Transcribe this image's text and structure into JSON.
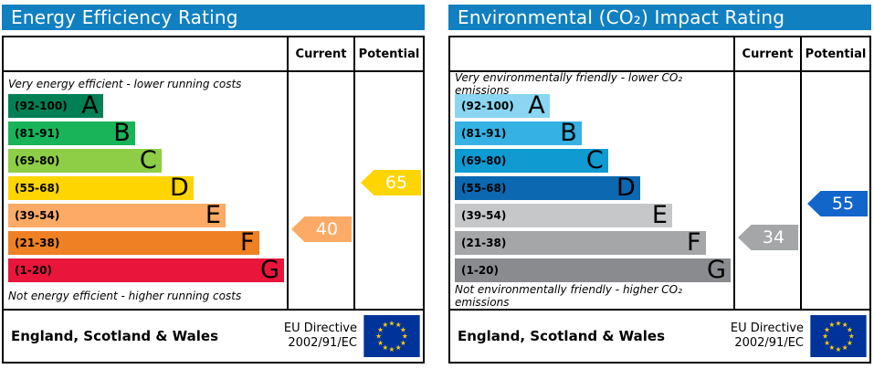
{
  "colors": {
    "header_bg": "#1180c1",
    "header_text": "#ffffff",
    "border": "#000000",
    "arrow_text": "#ffffff",
    "eu_flag_bg": "#003399",
    "eu_star": "#ffcc00"
  },
  "chart_data": [
    {
      "type": "bar",
      "title": "Energy Efficiency Rating",
      "top_caption": "Very energy efficient - lower running costs",
      "bottom_caption": "Not energy efficient - higher running costs",
      "columns": {
        "current": "Current",
        "potential": "Potential"
      },
      "bands": [
        {
          "letter": "A",
          "range": "(92-100)",
          "min": 92,
          "max": 100,
          "color": "#008054",
          "width_pct": 34
        },
        {
          "letter": "B",
          "range": "(81-91)",
          "min": 81,
          "max": 91,
          "color": "#19b459",
          "width_pct": 45.5
        },
        {
          "letter": "C",
          "range": "(69-80)",
          "min": 69,
          "max": 80,
          "color": "#8dce46",
          "width_pct": 55
        },
        {
          "letter": "D",
          "range": "(55-68)",
          "min": 55,
          "max": 68,
          "color": "#ffd500",
          "width_pct": 66.5
        },
        {
          "letter": "E",
          "range": "(39-54)",
          "min": 39,
          "max": 54,
          "color": "#fcaa65",
          "width_pct": 78
        },
        {
          "letter": "F",
          "range": "(21-38)",
          "min": 21,
          "max": 38,
          "color": "#ef8023",
          "width_pct": 90
        },
        {
          "letter": "G",
          "range": "(1-20)",
          "min": 1,
          "max": 20,
          "color": "#e9153b",
          "width_pct": 99
        }
      ],
      "current": {
        "value": 40,
        "color": "#fcaa65"
      },
      "potential": {
        "value": 65,
        "color": "#ffd500"
      },
      "footer": {
        "region": "England, Scotland & Wales",
        "directive_line1": "EU Directive",
        "directive_line2": "2002/91/EC"
      }
    },
    {
      "type": "bar",
      "title": "Environmental (CO₂) Impact Rating",
      "top_caption": "Very environmentally friendly - lower CO₂ emissions",
      "bottom_caption": "Not environmentally friendly - higher CO₂ emissions",
      "columns": {
        "current": "Current",
        "potential": "Potential"
      },
      "bands": [
        {
          "letter": "A",
          "range": "(92-100)",
          "min": 92,
          "max": 100,
          "color": "#8ad5f1",
          "width_pct": 34
        },
        {
          "letter": "B",
          "range": "(81-91)",
          "min": 81,
          "max": 91,
          "color": "#35b1e4",
          "width_pct": 45.5
        },
        {
          "letter": "C",
          "range": "(69-80)",
          "min": 69,
          "max": 80,
          "color": "#0f9ad2",
          "width_pct": 55
        },
        {
          "letter": "D",
          "range": "(55-68)",
          "min": 55,
          "max": 68,
          "color": "#0c68b0",
          "width_pct": 66.5
        },
        {
          "letter": "E",
          "range": "(39-54)",
          "min": 39,
          "max": 54,
          "color": "#c5c7c9",
          "width_pct": 78
        },
        {
          "letter": "F",
          "range": "(21-38)",
          "min": 21,
          "max": 38,
          "color": "#a4a6a8",
          "width_pct": 90
        },
        {
          "letter": "G",
          "range": "(1-20)",
          "min": 1,
          "max": 20,
          "color": "#898b8e",
          "width_pct": 99
        }
      ],
      "current": {
        "value": 34,
        "color": "#a4a6a8"
      },
      "potential": {
        "value": 55,
        "color": "#1266c9"
      },
      "footer": {
        "region": "England, Scotland & Wales",
        "directive_line1": "EU Directive",
        "directive_line2": "2002/91/EC"
      }
    }
  ]
}
